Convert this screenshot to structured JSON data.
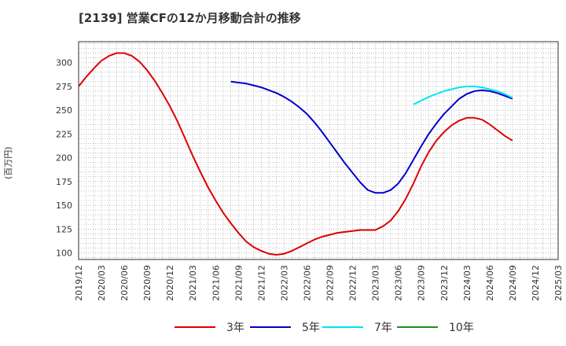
{
  "chart_data": {
    "type": "line",
    "title": "[2139]  営業CFの12か月移動合計の推移",
    "ylabel": "(百万円)",
    "xlabel": "",
    "ylim": [
      93,
      322
    ],
    "yticks": [
      100,
      125,
      150,
      175,
      200,
      225,
      250,
      275,
      300
    ],
    "xticks": [
      "2019/12",
      "2020/03",
      "2020/06",
      "2020/09",
      "2020/12",
      "2021/03",
      "2021/06",
      "2021/09",
      "2021/12",
      "2022/03",
      "2022/06",
      "2022/09",
      "2022/12",
      "2023/03",
      "2023/06",
      "2023/09",
      "2023/12",
      "2024/03",
      "2024/06",
      "2024/09",
      "2024/12",
      "2025/03"
    ],
    "grid": true,
    "legend_position": "bottom",
    "series": [
      {
        "name": "3年",
        "color": "#dd0000",
        "points": [
          [
            "2019/12",
            275
          ],
          [
            "2020/01",
            285
          ],
          [
            "2020/02",
            294
          ],
          [
            "2020/03",
            302
          ],
          [
            "2020/04",
            307
          ],
          [
            "2020/05",
            310
          ],
          [
            "2020/06",
            310
          ],
          [
            "2020/07",
            307
          ],
          [
            "2020/08",
            301
          ],
          [
            "2020/09",
            292
          ],
          [
            "2020/10",
            281
          ],
          [
            "2020/11",
            268
          ],
          [
            "2020/12",
            254
          ],
          [
            "2021/01",
            238
          ],
          [
            "2021/02",
            220
          ],
          [
            "2021/03",
            202
          ],
          [
            "2021/04",
            185
          ],
          [
            "2021/05",
            169
          ],
          [
            "2021/06",
            155
          ],
          [
            "2021/07",
            142
          ],
          [
            "2021/08",
            131
          ],
          [
            "2021/09",
            121
          ],
          [
            "2021/10",
            112
          ],
          [
            "2021/11",
            106
          ],
          [
            "2021/12",
            102
          ],
          [
            "2022/01",
            99
          ],
          [
            "2022/02",
            98
          ],
          [
            "2022/03",
            99
          ],
          [
            "2022/04",
            102
          ],
          [
            "2022/05",
            106
          ],
          [
            "2022/06",
            110
          ],
          [
            "2022/07",
            114
          ],
          [
            "2022/08",
            117
          ],
          [
            "2022/09",
            119
          ],
          [
            "2022/10",
            121
          ],
          [
            "2022/11",
            122
          ],
          [
            "2022/12",
            123
          ],
          [
            "2023/01",
            124
          ],
          [
            "2023/02",
            124
          ],
          [
            "2023/03",
            124
          ],
          [
            "2023/04",
            128
          ],
          [
            "2023/05",
            134
          ],
          [
            "2023/06",
            144
          ],
          [
            "2023/07",
            157
          ],
          [
            "2023/08",
            173
          ],
          [
            "2023/09",
            191
          ],
          [
            "2023/10",
            206
          ],
          [
            "2023/11",
            218
          ],
          [
            "2023/12",
            227
          ],
          [
            "2024/01",
            234
          ],
          [
            "2024/02",
            239
          ],
          [
            "2024/03",
            242
          ],
          [
            "2024/04",
            242
          ],
          [
            "2024/05",
            240
          ],
          [
            "2024/06",
            235
          ],
          [
            "2024/07",
            229
          ],
          [
            "2024/08",
            223
          ],
          [
            "2024/09",
            218
          ]
        ]
      },
      {
        "name": "5年",
        "color": "#0000cc",
        "points": [
          [
            "2021/08",
            280
          ],
          [
            "2021/09",
            279
          ],
          [
            "2021/10",
            278
          ],
          [
            "2021/11",
            276
          ],
          [
            "2021/12",
            274
          ],
          [
            "2022/01",
            271
          ],
          [
            "2022/02",
            268
          ],
          [
            "2022/03",
            264
          ],
          [
            "2022/04",
            259
          ],
          [
            "2022/05",
            253
          ],
          [
            "2022/06",
            246
          ],
          [
            "2022/07",
            237
          ],
          [
            "2022/08",
            227
          ],
          [
            "2022/09",
            216
          ],
          [
            "2022/10",
            205
          ],
          [
            "2022/11",
            194
          ],
          [
            "2022/12",
            184
          ],
          [
            "2023/01",
            174
          ],
          [
            "2023/02",
            166
          ],
          [
            "2023/03",
            163
          ],
          [
            "2023/04",
            163
          ],
          [
            "2023/05",
            166
          ],
          [
            "2023/06",
            173
          ],
          [
            "2023/07",
            184
          ],
          [
            "2023/08",
            198
          ],
          [
            "2023/09",
            212
          ],
          [
            "2023/10",
            225
          ],
          [
            "2023/11",
            236
          ],
          [
            "2023/12",
            246
          ],
          [
            "2024/01",
            254
          ],
          [
            "2024/02",
            262
          ],
          [
            "2024/03",
            267
          ],
          [
            "2024/04",
            270
          ],
          [
            "2024/05",
            271
          ],
          [
            "2024/06",
            270
          ],
          [
            "2024/07",
            268
          ],
          [
            "2024/08",
            265
          ],
          [
            "2024/09",
            262
          ]
        ]
      },
      {
        "name": "7年",
        "color": "#00e5ee",
        "points": [
          [
            "2023/08",
            256
          ],
          [
            "2023/09",
            260
          ],
          [
            "2023/10",
            264
          ],
          [
            "2023/11",
            267
          ],
          [
            "2023/12",
            270
          ],
          [
            "2024/01",
            272
          ],
          [
            "2024/02",
            274
          ],
          [
            "2024/03",
            275
          ],
          [
            "2024/04",
            275
          ],
          [
            "2024/05",
            274
          ],
          [
            "2024/06",
            272
          ],
          [
            "2024/07",
            270
          ],
          [
            "2024/08",
            267
          ],
          [
            "2024/09",
            263
          ]
        ]
      },
      {
        "name": "10年",
        "color": "#228b22",
        "points": []
      }
    ]
  }
}
